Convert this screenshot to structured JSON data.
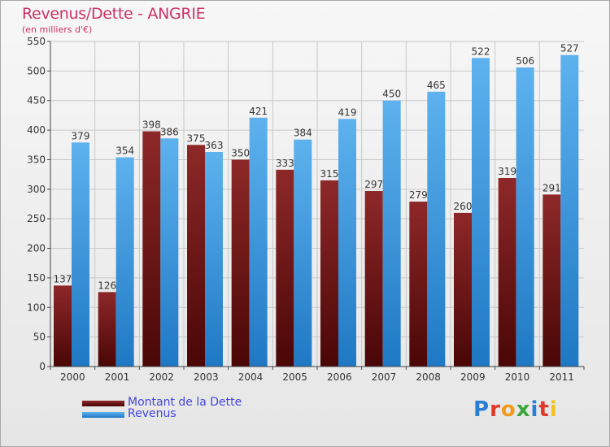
{
  "chart_data": {
    "type": "bar",
    "title": "Revenus/Dette - ANGRIE",
    "subtitle": "(en milliers d'€)",
    "categories": [
      "2000",
      "2001",
      "2002",
      "2003",
      "2004",
      "2005",
      "2006",
      "2007",
      "2008",
      "2009",
      "2010",
      "2011"
    ],
    "series": [
      {
        "name": "Montant de la Dette",
        "color": "#7a1a1a",
        "values": [
          137,
          126,
          398,
          375,
          350,
          333,
          315,
          297,
          279,
          260,
          319,
          291
        ]
      },
      {
        "name": "Revenus",
        "color": "#3a9ae0",
        "values": [
          379,
          354,
          386,
          363,
          421,
          384,
          419,
          450,
          465,
          522,
          506,
          527
        ]
      }
    ],
    "ylim": [
      0,
      550
    ],
    "yticks": [
      0,
      50,
      100,
      150,
      200,
      250,
      300,
      350,
      400,
      450,
      500,
      550
    ],
    "grid": true,
    "legend": "bottom-left"
  },
  "logo": {
    "letters": [
      {
        "ch": "P",
        "color": "#2a7fd4"
      },
      {
        "ch": "r",
        "color": "#e0392a"
      },
      {
        "ch": "o",
        "color": "#f29a1c"
      },
      {
        "ch": "x",
        "color": "#3aa83a"
      },
      {
        "ch": "i",
        "color": "#2a7fd4"
      },
      {
        "ch": "t",
        "color": "#e0392a"
      },
      {
        "ch": "i",
        "color": "#f2c21c"
      }
    ]
  }
}
